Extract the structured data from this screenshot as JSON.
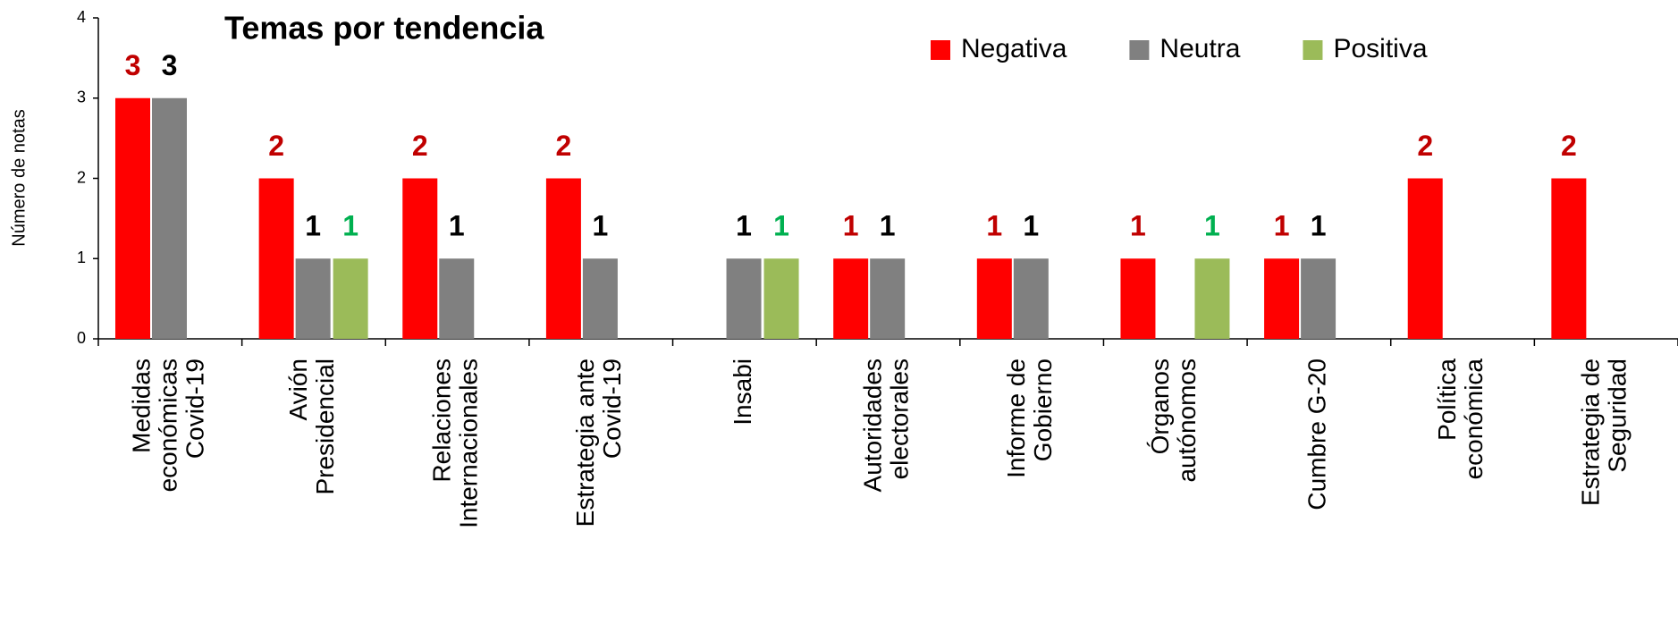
{
  "chart_data": {
    "type": "bar",
    "title": "Temas por tendencia",
    "y_label": "Número de notas",
    "categories": [
      "Medidas económicas Covid-19",
      "Avión Presidencial",
      "Relaciones Internacionales",
      "Estrategia ante Covid-19",
      "Insabi",
      "Autoridades electorales",
      "Informe de Gobierno",
      "Órganos autónomos",
      "Cumbre G-20",
      "Política económica",
      "Estrategia de Seguridad"
    ],
    "series": [
      {
        "name": "Negativa",
        "color": "#ff0000",
        "label_color": "#c00000",
        "values": [
          3,
          2,
          2,
          2,
          null,
          1,
          1,
          1,
          1,
          2,
          2
        ]
      },
      {
        "name": "Neutra",
        "color": "#808080",
        "label_color": "#000000",
        "values": [
          3,
          1,
          1,
          1,
          1,
          1,
          1,
          null,
          1,
          null,
          null
        ]
      },
      {
        "name": "Positiva",
        "color": "#9bbb59",
        "label_color": "#00b050",
        "values": [
          null,
          1,
          null,
          null,
          1,
          null,
          null,
          1,
          null,
          null,
          null
        ]
      }
    ],
    "ylim": [
      0,
      4
    ],
    "yticks": [
      0,
      1,
      2,
      3,
      4
    ],
    "legend": "top-right"
  }
}
